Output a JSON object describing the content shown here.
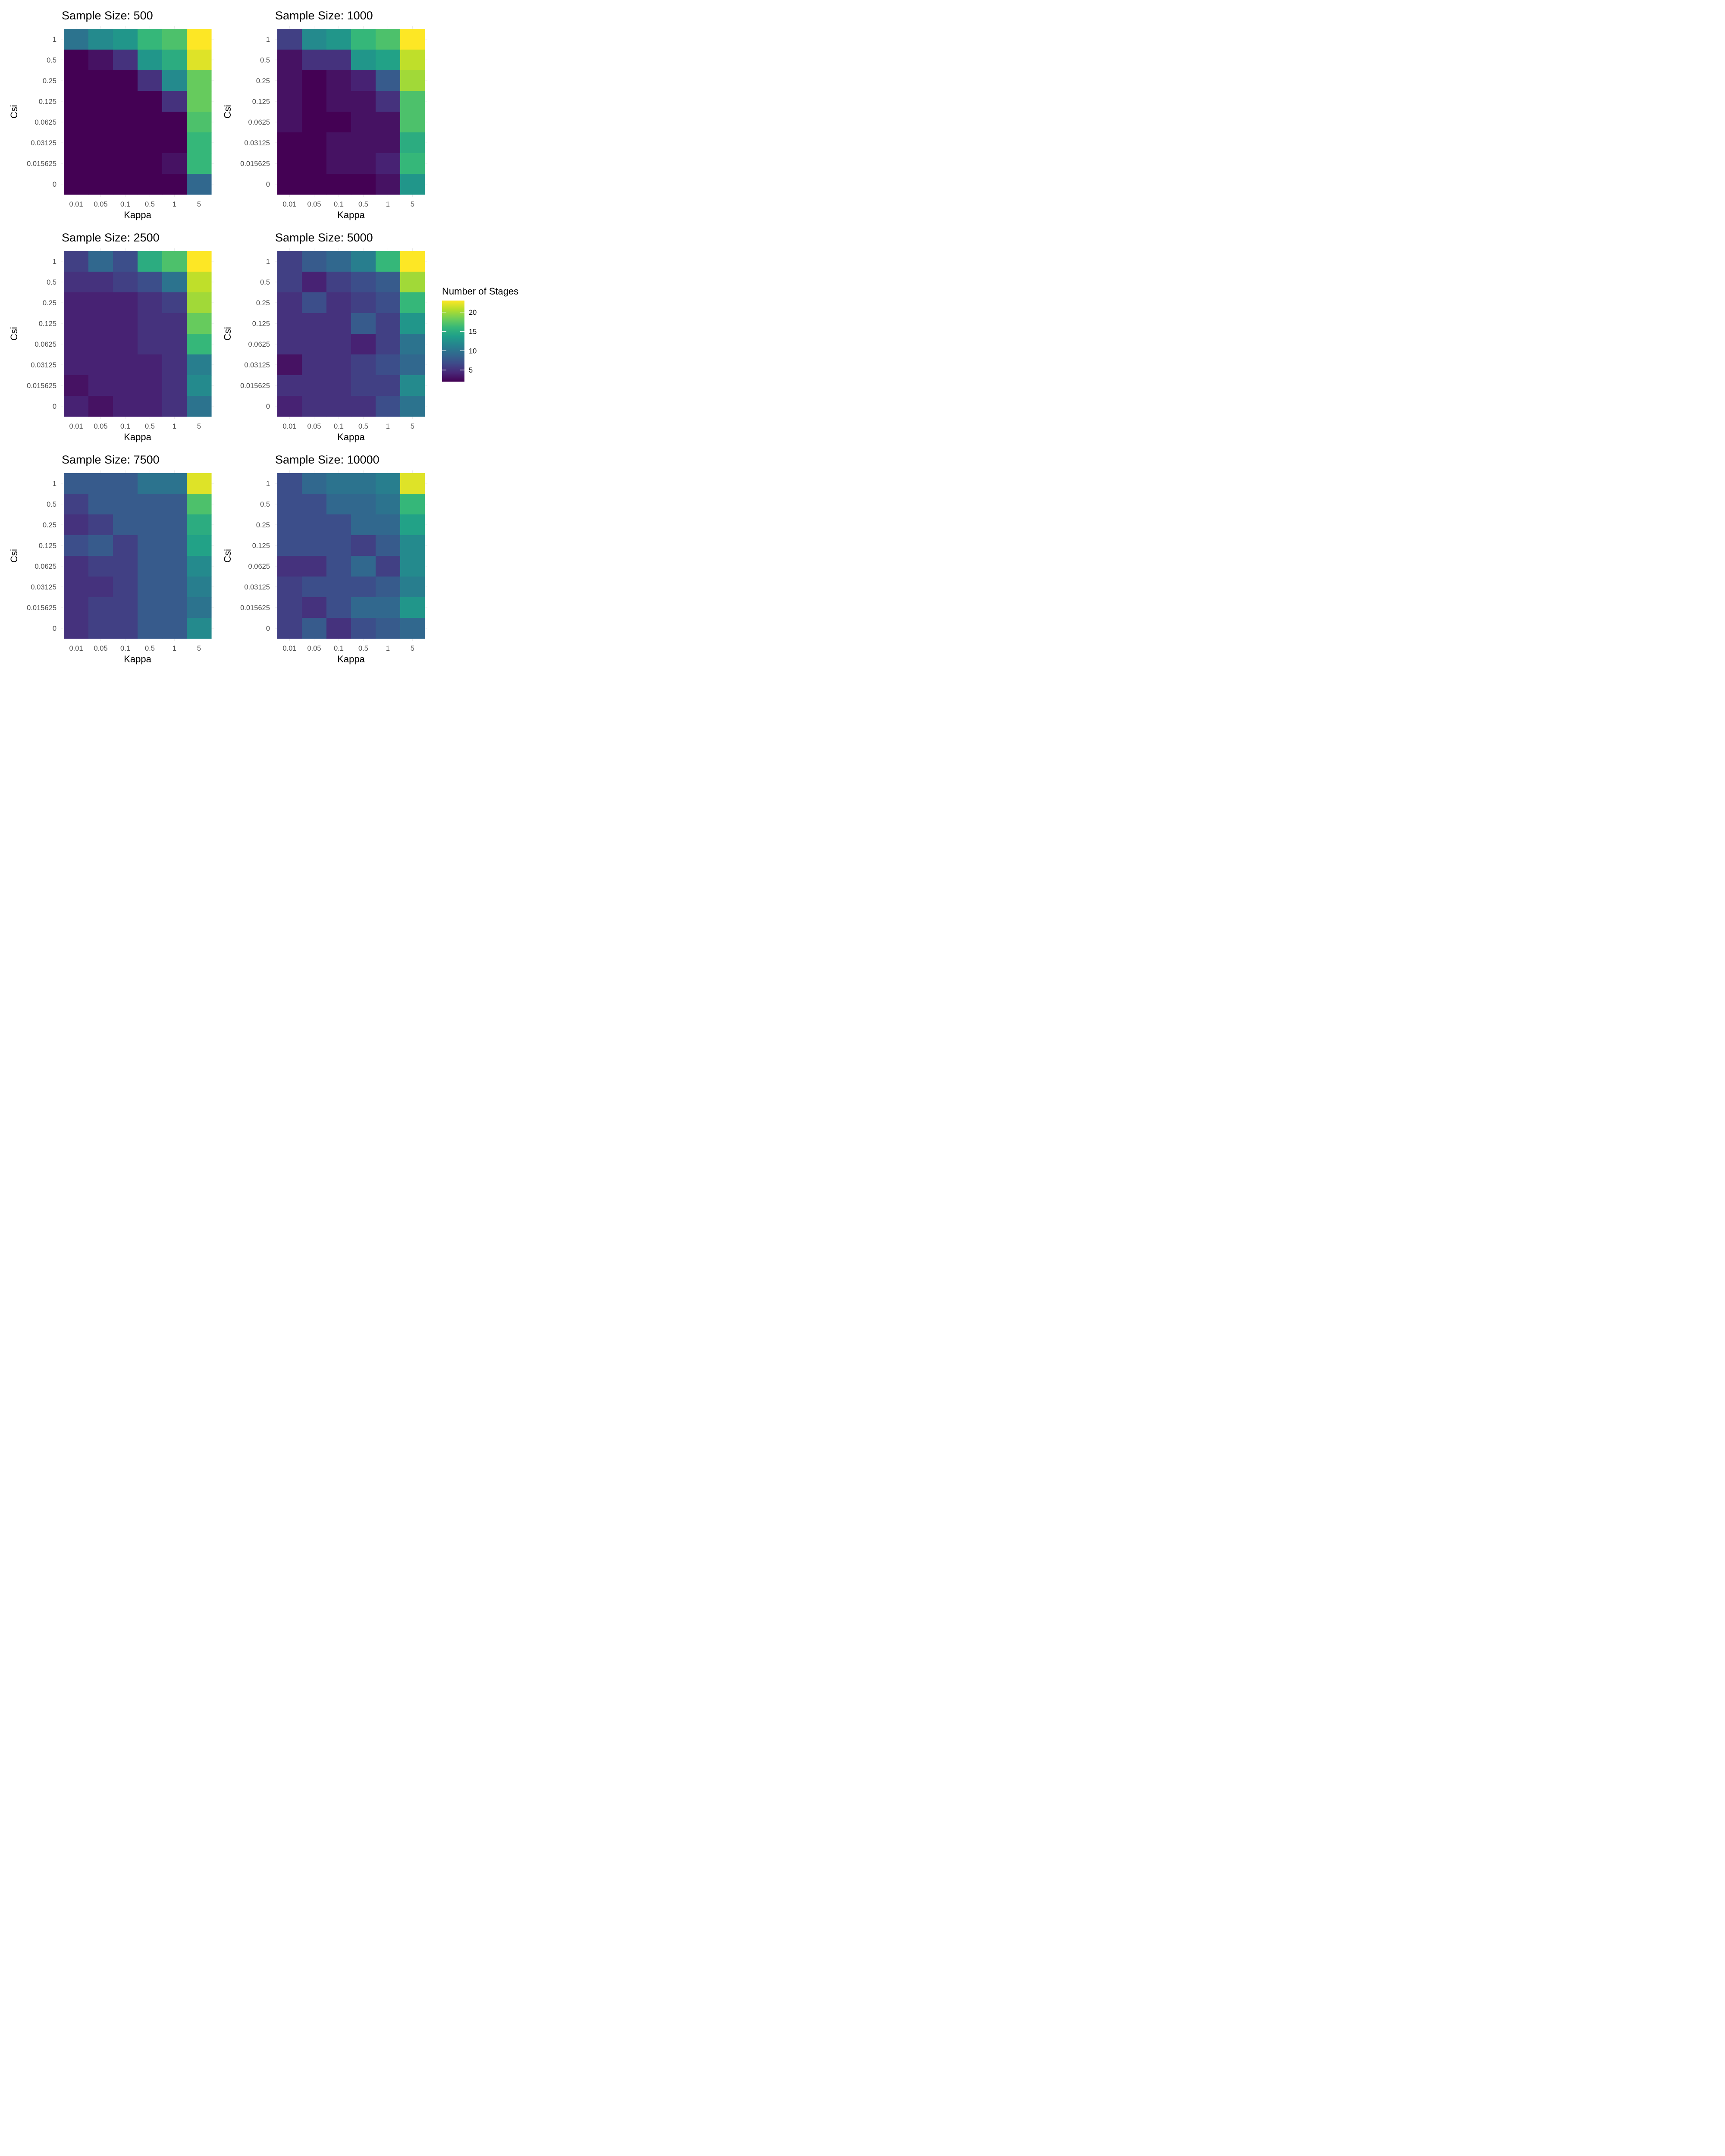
{
  "legend": {
    "title": "Number of Stages",
    "ticks": [
      20,
      15,
      10,
      5
    ],
    "range": [
      2,
      23
    ],
    "colors": [
      "#440154",
      "#482878",
      "#3e4a89",
      "#31688e",
      "#26828e",
      "#1f9e89",
      "#35b779",
      "#6ece58",
      "#b5de2b",
      "#fde725"
    ]
  },
  "chart_data": [
    {
      "type": "heatmap",
      "title": "Sample Size: 500",
      "xlabel": "Kappa",
      "ylabel": "Csi",
      "x": [
        "0.01",
        "0.05",
        "0.1",
        "0.5",
        "1",
        "5"
      ],
      "y": [
        "1",
        "0.5",
        "0.25",
        "0.125",
        "0.0625",
        "0.03125",
        "0.015625",
        "0"
      ],
      "values": [
        [
          10,
          12,
          13,
          16,
          17,
          23
        ],
        [
          2,
          3,
          5,
          13,
          15,
          22
        ],
        [
          2,
          2,
          2,
          5,
          12,
          18
        ],
        [
          2,
          2,
          2,
          2,
          5,
          18
        ],
        [
          2,
          2,
          2,
          2,
          2,
          17
        ],
        [
          2,
          2,
          2,
          2,
          2,
          16
        ],
        [
          2,
          2,
          2,
          2,
          3,
          16
        ],
        [
          2,
          2,
          2,
          2,
          2,
          9
        ]
      ]
    },
    {
      "type": "heatmap",
      "title": "Sample Size: 1000",
      "xlabel": "Kappa",
      "ylabel": "Csi",
      "x": [
        "0.01",
        "0.05",
        "0.1",
        "0.5",
        "1",
        "5"
      ],
      "y": [
        "1",
        "0.5",
        "0.25",
        "0.125",
        "0.0625",
        "0.03125",
        "0.015625",
        "0"
      ],
      "values": [
        [
          6,
          12,
          13,
          16,
          17,
          23
        ],
        [
          3,
          5,
          5,
          13,
          14,
          21
        ],
        [
          3,
          2,
          3,
          4,
          8,
          20
        ],
        [
          3,
          2,
          3,
          3,
          5,
          17
        ],
        [
          3,
          2,
          2,
          3,
          3,
          17
        ],
        [
          2,
          2,
          3,
          3,
          3,
          15
        ],
        [
          2,
          2,
          3,
          3,
          4,
          16
        ],
        [
          2,
          2,
          2,
          2,
          3,
          13
        ]
      ]
    },
    {
      "type": "heatmap",
      "title": "Sample Size: 2500",
      "xlabel": "Kappa",
      "ylabel": "Csi",
      "x": [
        "0.01",
        "0.05",
        "0.1",
        "0.5",
        "1",
        "5"
      ],
      "y": [
        "1",
        "0.5",
        "0.25",
        "0.125",
        "0.0625",
        "0.03125",
        "0.015625",
        "0"
      ],
      "values": [
        [
          6,
          9,
          7,
          15,
          17,
          23
        ],
        [
          5,
          5,
          6,
          7,
          10,
          21
        ],
        [
          4,
          4,
          4,
          5,
          6,
          20
        ],
        [
          4,
          4,
          4,
          5,
          5,
          18
        ],
        [
          4,
          4,
          4,
          5,
          5,
          16
        ],
        [
          4,
          4,
          4,
          4,
          5,
          11
        ],
        [
          3,
          4,
          4,
          4,
          5,
          12
        ],
        [
          4,
          3,
          4,
          4,
          5,
          10
        ]
      ]
    },
    {
      "type": "heatmap",
      "title": "Sample Size: 5000",
      "xlabel": "Kappa",
      "ylabel": "Csi",
      "x": [
        "0.01",
        "0.05",
        "0.1",
        "0.5",
        "1",
        "5"
      ],
      "y": [
        "1",
        "0.5",
        "0.25",
        "0.125",
        "0.0625",
        "0.03125",
        "0.015625",
        "0"
      ],
      "values": [
        [
          6,
          8,
          9,
          11,
          16,
          23
        ],
        [
          6,
          4,
          6,
          7,
          8,
          20
        ],
        [
          5,
          7,
          5,
          6,
          7,
          16
        ],
        [
          5,
          5,
          5,
          8,
          6,
          13
        ],
        [
          5,
          5,
          5,
          4,
          6,
          10
        ],
        [
          3,
          5,
          5,
          6,
          7,
          9
        ],
        [
          5,
          5,
          5,
          6,
          6,
          12
        ],
        [
          4,
          5,
          5,
          5,
          7,
          10
        ]
      ]
    },
    {
      "type": "heatmap",
      "title": "Sample Size: 7500",
      "xlabel": "Kappa",
      "ylabel": "Csi",
      "x": [
        "0.01",
        "0.05",
        "0.1",
        "0.5",
        "1",
        "5"
      ],
      "y": [
        "1",
        "0.5",
        "0.25",
        "0.125",
        "0.0625",
        "0.03125",
        "0.015625",
        "0"
      ],
      "values": [
        [
          8,
          8,
          8,
          10,
          10,
          22
        ],
        [
          6,
          8,
          8,
          8,
          8,
          17
        ],
        [
          5,
          6,
          8,
          8,
          8,
          15
        ],
        [
          7,
          8,
          6,
          8,
          8,
          14
        ],
        [
          5,
          6,
          6,
          8,
          8,
          12
        ],
        [
          5,
          5,
          6,
          8,
          8,
          11
        ],
        [
          5,
          6,
          6,
          8,
          8,
          10
        ],
        [
          5,
          6,
          6,
          8,
          8,
          12
        ]
      ]
    },
    {
      "type": "heatmap",
      "title": "Sample Size: 10000",
      "xlabel": "Kappa",
      "ylabel": "Csi",
      "x": [
        "0.01",
        "0.05",
        "0.1",
        "0.5",
        "1",
        "5"
      ],
      "y": [
        "1",
        "0.5",
        "0.25",
        "0.125",
        "0.0625",
        "0.03125",
        "0.015625",
        "0"
      ],
      "values": [
        [
          7,
          9,
          10,
          10,
          11,
          22
        ],
        [
          7,
          7,
          9,
          9,
          10,
          16
        ],
        [
          7,
          7,
          7,
          9,
          9,
          14
        ],
        [
          7,
          7,
          7,
          6,
          8,
          12
        ],
        [
          5,
          5,
          7,
          9,
          6,
          12
        ],
        [
          6,
          7,
          7,
          7,
          8,
          11
        ],
        [
          6,
          5,
          7,
          9,
          9,
          13
        ],
        [
          6,
          8,
          5,
          7,
          8,
          9
        ]
      ]
    }
  ]
}
